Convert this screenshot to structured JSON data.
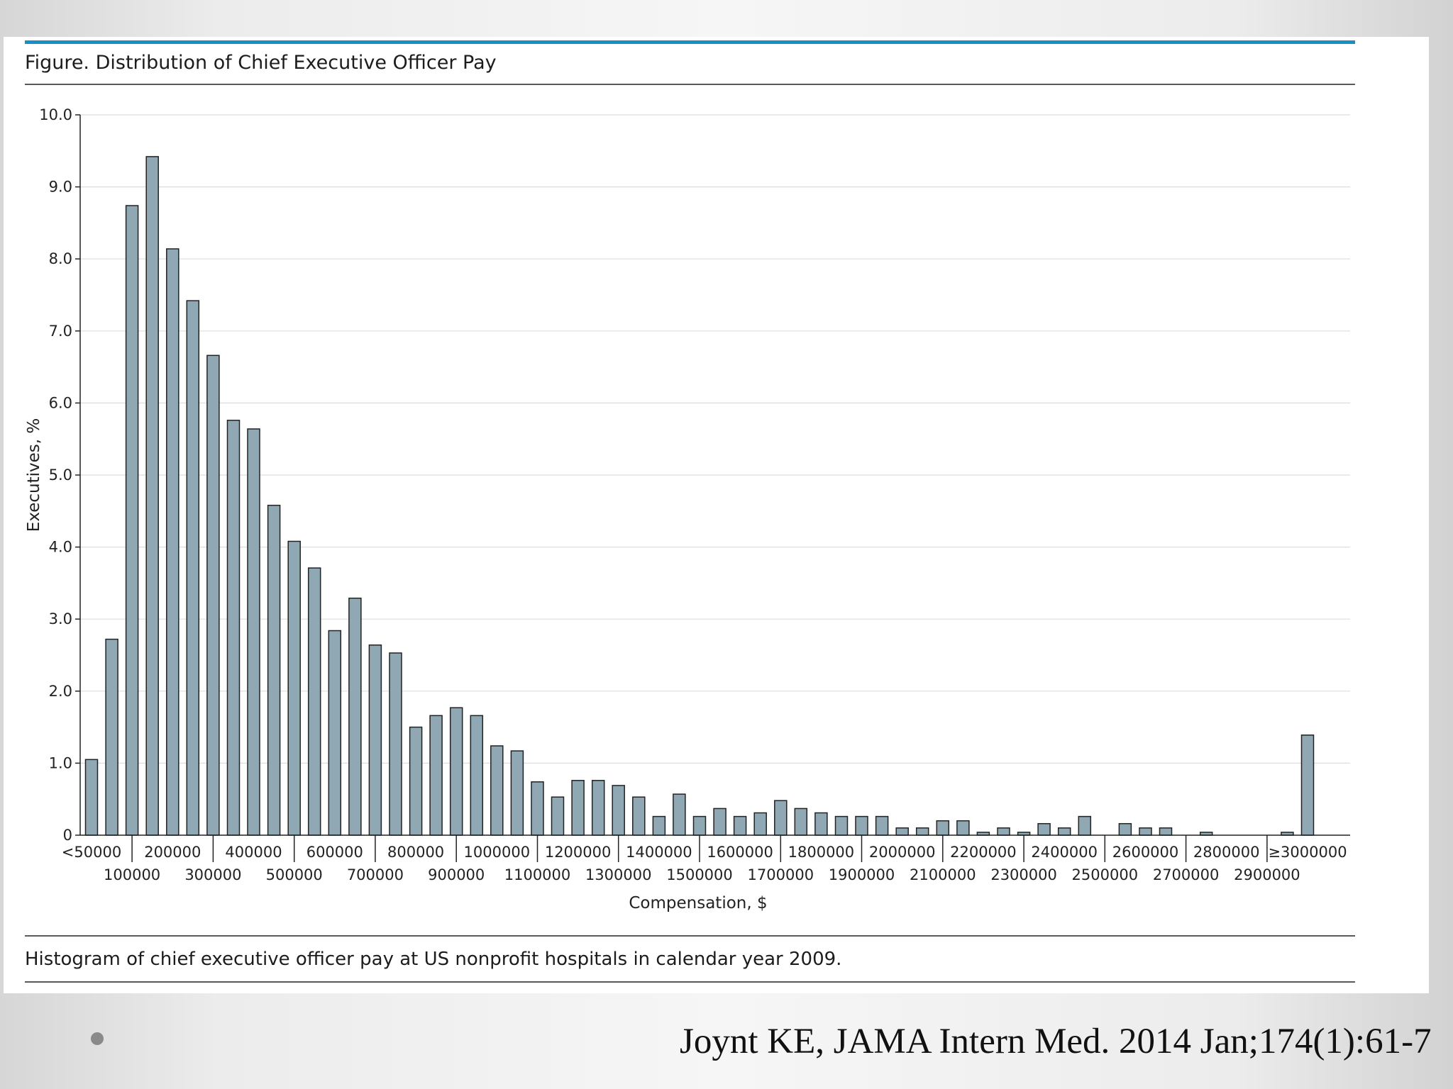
{
  "figure": {
    "title": "Figure. Distribution of Chief Executive Officer Pay",
    "caption": "Histogram of chief executive officer pay at US nonprofit hospitals in calendar year 2009."
  },
  "slide": {
    "citation": "Joynt KE, JAMA Intern Med. 2014 Jan;174(1):61-7"
  },
  "colors": {
    "bar_fill": "#8fa8b4",
    "bar_stroke": "#222222",
    "accent_rule": "#1a8fc4",
    "gridline": "#dddddd"
  },
  "chart_data": {
    "type": "bar",
    "title": "Figure. Distribution of Chief Executive Officer Pay",
    "xlabel": "Compensation, $",
    "ylabel": "Executives, %",
    "ylim": [
      0,
      10
    ],
    "yticks": [
      "0",
      "1.0",
      "2.0",
      "3.0",
      "4.0",
      "5.0",
      "6.0",
      "7.0",
      "8.0",
      "9.0",
      "10.0"
    ],
    "grid": true,
    "x_tick_labels_top": [
      "<50000",
      "200000",
      "400000",
      "600000",
      "800000",
      "1000000",
      "1200000",
      "1400000",
      "1600000",
      "1800000",
      "2000000",
      "2200000",
      "2400000",
      "2600000",
      "2800000",
      "≥3000000"
    ],
    "x_tick_labels_bottom": [
      "100000",
      "300000",
      "500000",
      "700000",
      "900000",
      "1100000",
      "1300000",
      "1500000",
      "1700000",
      "1900000",
      "2100000",
      "2300000",
      "2500000",
      "2700000",
      "2900000"
    ],
    "values": [
      1.05,
      2.72,
      8.74,
      9.42,
      8.14,
      7.42,
      6.66,
      5.76,
      5.64,
      4.58,
      4.08,
      3.71,
      2.84,
      3.29,
      2.64,
      2.53,
      1.5,
      1.66,
      1.77,
      1.66,
      1.24,
      1.17,
      0.74,
      0.53,
      0.76,
      0.76,
      0.69,
      0.53,
      0.26,
      0.57,
      0.26,
      0.37,
      0.26,
      0.31,
      0.48,
      0.37,
      0.31,
      0.26,
      0.26,
      0.26,
      0.1,
      0.1,
      0.2,
      0.2,
      0.04,
      0.1,
      0.04,
      0.16,
      0.1,
      0.26,
      0.0,
      0.16,
      0.1,
      0.1,
      0.0,
      0.04,
      0.0,
      0.0,
      0.0,
      0.04,
      1.39
    ]
  }
}
